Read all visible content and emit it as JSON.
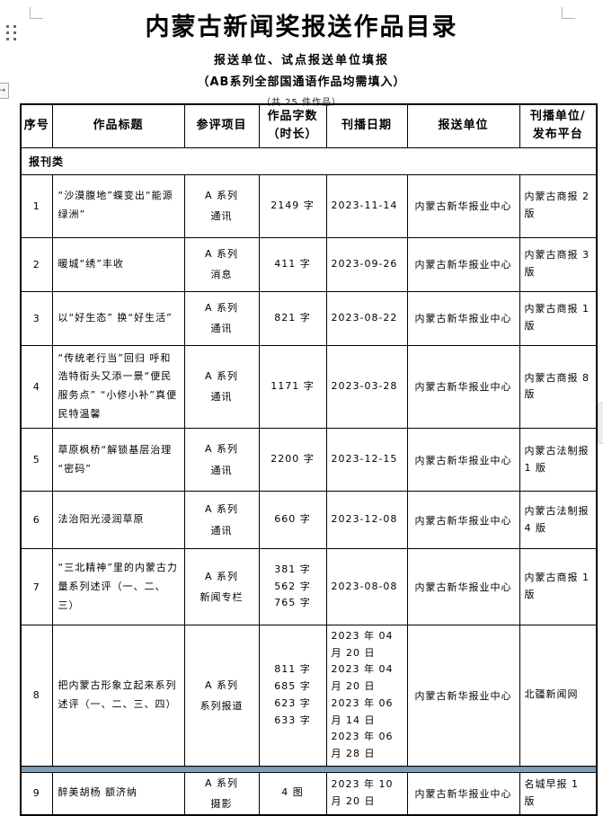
{
  "page": {
    "title": "内蒙古新闻奖报送作品目录",
    "subtitle1": "报送单位、试点报送单位填报",
    "subtitle2": "（AB系列全部国通语作品均需填入）",
    "subtitle3": "（共 25 件作品）"
  },
  "table": {
    "headers": [
      {
        "lines": [
          "序号"
        ]
      },
      {
        "lines": [
          "作品标题"
        ]
      },
      {
        "lines": [
          "参评项目"
        ]
      },
      {
        "lines": [
          "作品字数",
          "（时长）"
        ]
      },
      {
        "lines": [
          "刊播日期"
        ]
      },
      {
        "lines": [
          "报送单位"
        ]
      },
      {
        "lines": [
          "刊播单位/",
          "发布平台"
        ]
      }
    ],
    "section_label": "报刊类",
    "rows": [
      {
        "no": "1",
        "title": "“沙漠腹地”蝶变出“能源绿洲”",
        "category_lines": [
          "A 系列",
          "通讯"
        ],
        "count_lines": [
          "2149 字"
        ],
        "dates": [
          "2023-11-14"
        ],
        "unit": "内蒙古新华报业中心",
        "publisher": "内蒙古商报 2 版"
      },
      {
        "no": "2",
        "title": "暖城“绣”丰收",
        "category_lines": [
          "A 系列",
          "消息"
        ],
        "count_lines": [
          "411 字"
        ],
        "dates": [
          "2023-09-26"
        ],
        "unit": "内蒙古新华报业中心",
        "publisher": "内蒙古商报 3 版"
      },
      {
        "no": "3",
        "title": "以“好生态” 换“好生活”",
        "category_lines": [
          "A 系列",
          "通讯"
        ],
        "count_lines": [
          "821 字"
        ],
        "dates": [
          "2023-08-22"
        ],
        "unit": "内蒙古新华报业中心",
        "publisher": "内蒙古商报 1 版"
      },
      {
        "no": "4",
        "title": "“传统老行当”回归 呼和浩特街头又添一景“便民服务点” “小修小补”真便民特温馨",
        "category_lines": [
          "A 系列",
          "通讯"
        ],
        "count_lines": [
          "1171 字"
        ],
        "dates": [
          "2023-03-28"
        ],
        "unit": "内蒙古新华报业中心",
        "publisher": "内蒙古商报 8 版"
      },
      {
        "no": "5",
        "title": "草原枫桥“解锁基层治理 “密码”",
        "category_lines": [
          "A 系列",
          "通讯"
        ],
        "count_lines": [
          "2200 字"
        ],
        "dates": [
          "2023-12-15"
        ],
        "unit": "内蒙古新华报业中心",
        "publisher": "内蒙古法制报 1 版"
      },
      {
        "no": "6",
        "title": "法治阳光浸润草原",
        "category_lines": [
          "A 系列",
          "通讯"
        ],
        "count_lines": [
          "660 字"
        ],
        "dates": [
          "2023-12-08"
        ],
        "unit": "内蒙古新华报业中心",
        "publisher": "内蒙古法制报 4 版"
      },
      {
        "no": "7",
        "title": "“三北精神”里的内蒙古力量系列述评（一、二、三）",
        "category_lines": [
          "A 系列",
          "新闻专栏"
        ],
        "count_lines": [
          "381 字",
          "562 字",
          "765 字"
        ],
        "dates": [
          "2023-08-08"
        ],
        "unit": "内蒙古新华报业中心",
        "publisher": "内蒙古商报 1 版"
      },
      {
        "no": "8",
        "title": "把内蒙古形象立起来系列述评（一、二、三、四）",
        "category_lines": [
          "A 系列",
          "系列报道"
        ],
        "count_lines": [
          "811 字",
          "685 字",
          "623 字",
          "633 字"
        ],
        "dates": [
          "2023 年 04 月 20 日",
          "2023 年 04 月 20 日",
          "2023 年 06 月 14 日",
          "2023 年 06 月 28 日"
        ],
        "unit": "内蒙古新华报业中心",
        "publisher": "北疆新闻网",
        "page_break_after": true
      },
      {
        "no": "9",
        "title": "醉美胡杨 额济纳",
        "category_lines": [
          "A 系列",
          "摄影"
        ],
        "count_lines": [
          "4 图"
        ],
        "dates": [
          "2023 年 10 月 20 日"
        ],
        "unit": "内蒙古新华报业中心",
        "publisher": "名城早报 1 版"
      }
    ]
  }
}
